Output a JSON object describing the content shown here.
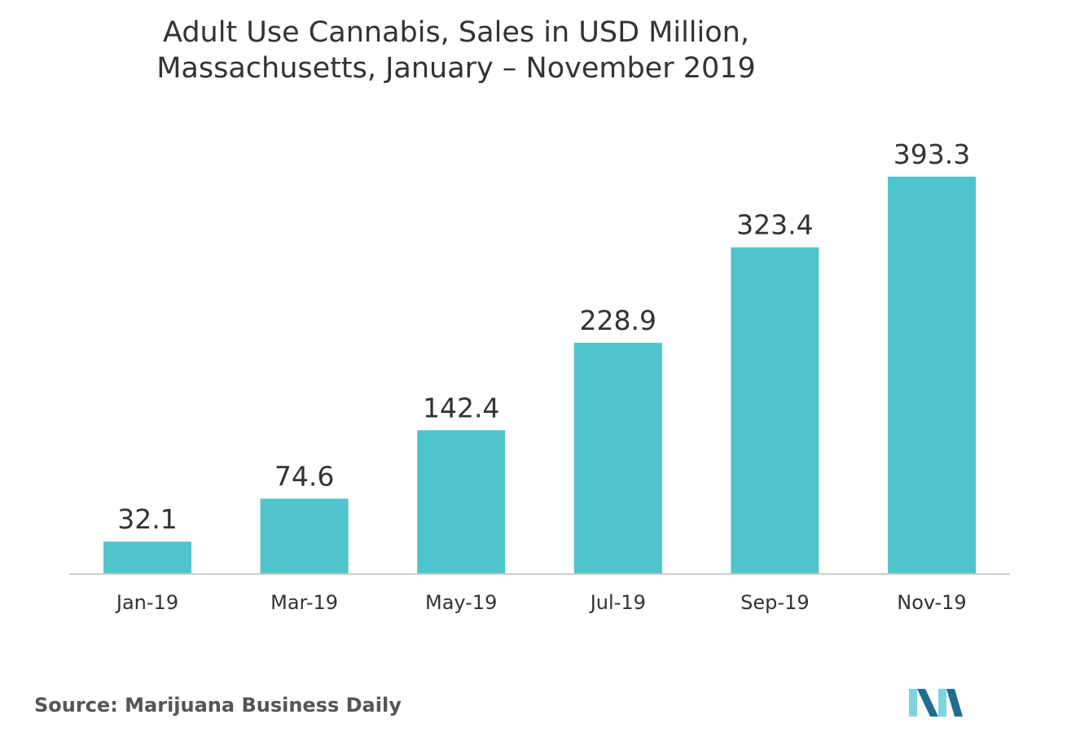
{
  "title": {
    "line1": "Adult Use Cannabis, Sales in USD Million,",
    "line2": "Massachusetts, January – November 2019"
  },
  "source": "Source: Marijuana Business Daily",
  "colors": {
    "bar": "#50c4cb",
    "axis": "#cccccc",
    "text": "#333333",
    "logo_light": "#7fd3e0",
    "logo_dark": "#1f6e8f"
  },
  "chart_data": {
    "type": "bar",
    "categories": [
      "Jan-19",
      "Mar-19",
      "May-19",
      "Jul-19",
      "Sep-19",
      "Nov-19"
    ],
    "values": [
      32.1,
      74.6,
      142.4,
      228.9,
      323.4,
      393.3
    ],
    "value_labels": [
      "32.1",
      "74.6",
      "142.4",
      "228.9",
      "323.4",
      "393.3"
    ],
    "title": "Adult Use Cannabis, Sales in USD Million, Massachusetts, January – November 2019",
    "xlabel": "",
    "ylabel": "",
    "ylim": [
      0,
      400
    ],
    "grid": false,
    "legend": "none"
  }
}
